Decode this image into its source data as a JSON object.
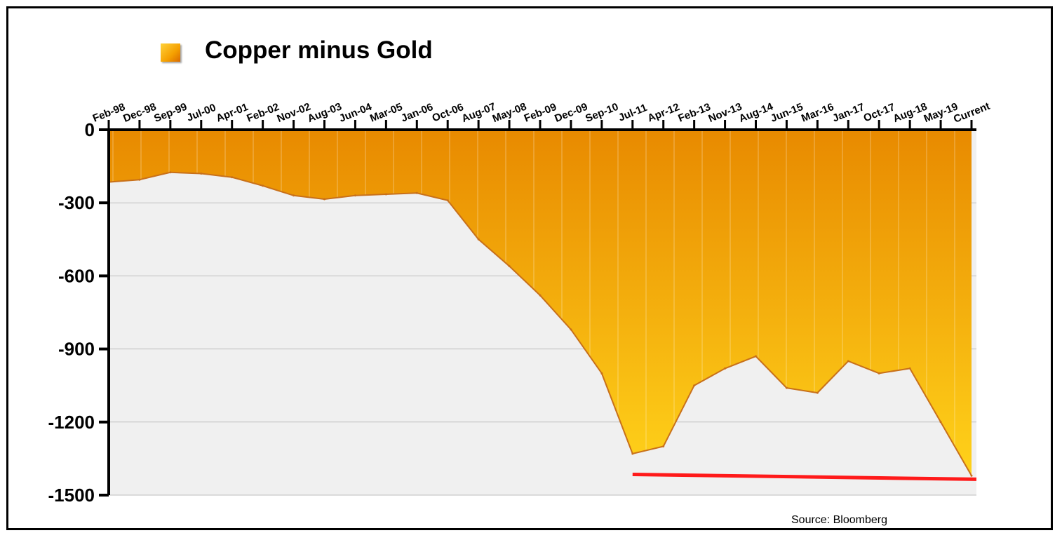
{
  "colors": {
    "fill_top": "#e88a00",
    "fill_bottom": "#ffd21a",
    "edge": "#c8701a",
    "plot_bg": "#f0f0f0",
    "support_line": "#ff1a1a",
    "axis": "#000000",
    "legend_swatch": "#f5a000"
  },
  "legend": {
    "icon": "orange-square-icon"
  },
  "source": "Source: Bloomberg",
  "chart_data": {
    "type": "area",
    "title": "Copper minus Gold",
    "xlabel": "",
    "ylabel": "",
    "ylim": [
      -1500,
      0
    ],
    "yticks": [
      0,
      -300,
      -600,
      -900,
      -1200,
      -1500
    ],
    "ytick_labels": [
      "0",
      "-300",
      "-600",
      "-900",
      "-1200",
      "-1500"
    ],
    "xtick_labels": [
      "Feb-98",
      "Dec-98",
      "Sep-99",
      "Jul-00",
      "Apr-01",
      "Feb-02",
      "Nov-02",
      "Aug-03",
      "Jun-04",
      "Mar-05",
      "Jan-06",
      "Oct-06",
      "Aug-07",
      "May-08",
      "Feb-09",
      "Dec-09",
      "Sep-10",
      "Jul-11",
      "Apr-12",
      "Feb-13",
      "Nov-13",
      "Aug-14",
      "Jun-15",
      "Mar-16",
      "Jan-17",
      "Oct-17",
      "Aug-18",
      "May-19",
      "Current"
    ],
    "grid": true,
    "legend_position": "top-left",
    "series": [
      {
        "name": "Copper minus Gold",
        "x": [
          "Feb-98",
          "Dec-98",
          "Sep-99",
          "Jul-00",
          "Apr-01",
          "Feb-02",
          "Nov-02",
          "Aug-03",
          "Jun-04",
          "Mar-05",
          "Jan-06",
          "Oct-06",
          "Aug-07",
          "May-08",
          "Feb-09",
          "Dec-09",
          "Sep-10",
          "Jul-11",
          "Apr-12",
          "Feb-13",
          "Nov-13",
          "Aug-14",
          "Jun-15",
          "Mar-16",
          "Jan-17",
          "Oct-17",
          "Aug-18",
          "May-19",
          "Current"
        ],
        "values": [
          -215,
          -205,
          -175,
          -180,
          -195,
          -230,
          -270,
          -285,
          -270,
          -265,
          -260,
          -290,
          -450,
          -560,
          -680,
          -820,
          -1000,
          -1330,
          -1300,
          -1050,
          -980,
          -930,
          -1060,
          -1080,
          -950,
          -1000,
          -980,
          -1200,
          -1420
        ]
      }
    ],
    "annotations": [
      {
        "type": "support-line",
        "from": {
          "x": "Jul-11",
          "y": -1415
        },
        "to": {
          "x": "Current",
          "y": -1435
        }
      }
    ]
  }
}
